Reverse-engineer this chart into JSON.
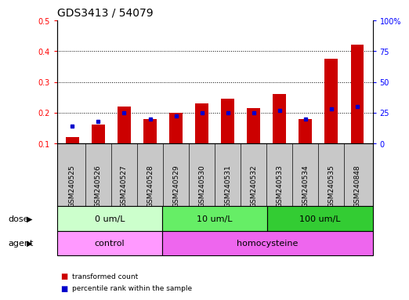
{
  "title": "GDS3413 / 54079",
  "samples": [
    "GSM240525",
    "GSM240526",
    "GSM240527",
    "GSM240528",
    "GSM240529",
    "GSM240530",
    "GSM240531",
    "GSM240532",
    "GSM240533",
    "GSM240534",
    "GSM240535",
    "GSM240848"
  ],
  "transformed_count": [
    0.12,
    0.16,
    0.22,
    0.18,
    0.2,
    0.23,
    0.245,
    0.215,
    0.26,
    0.18,
    0.375,
    0.42
  ],
  "percentile_rank_pct": [
    14,
    18,
    25,
    20,
    22,
    25,
    25,
    25,
    27,
    20,
    28,
    30
  ],
  "bar_color": "#cc0000",
  "blue_color": "#0000cc",
  "ylim_left": [
    0.1,
    0.5
  ],
  "ylim_right": [
    0,
    100
  ],
  "yticks_left": [
    0.1,
    0.2,
    0.3,
    0.4,
    0.5
  ],
  "ytick_labels_left": [
    "0.1",
    "0.2",
    "0.3",
    "0.4",
    "0.5"
  ],
  "yticks_right": [
    0,
    25,
    50,
    75,
    100
  ],
  "ytick_labels_right": [
    "0",
    "25",
    "50",
    "75",
    "100%"
  ],
  "dose_groups": [
    {
      "label": "0 um/L",
      "start": 0,
      "end": 4,
      "color": "#ccffcc"
    },
    {
      "label": "10 um/L",
      "start": 4,
      "end": 8,
      "color": "#66ee66"
    },
    {
      "label": "100 um/L",
      "start": 8,
      "end": 12,
      "color": "#33cc33"
    }
  ],
  "agent_groups": [
    {
      "label": "control",
      "start": 0,
      "end": 4,
      "color": "#ff99ff"
    },
    {
      "label": "homocysteine",
      "start": 4,
      "end": 12,
      "color": "#ee66ee"
    }
  ],
  "dose_label": "dose",
  "agent_label": "agent",
  "legend_items": [
    {
      "color": "#cc0000",
      "label": "transformed count"
    },
    {
      "color": "#0000cc",
      "label": "percentile rank within the sample"
    }
  ],
  "bar_width": 0.5,
  "background_color": "#ffffff",
  "xtick_bg_color": "#c8c8c8",
  "grid_dotted_values": [
    0.2,
    0.3,
    0.4
  ],
  "title_fontsize": 10,
  "tick_fontsize": 7,
  "label_fontsize": 8,
  "xtick_fontsize": 6.5
}
